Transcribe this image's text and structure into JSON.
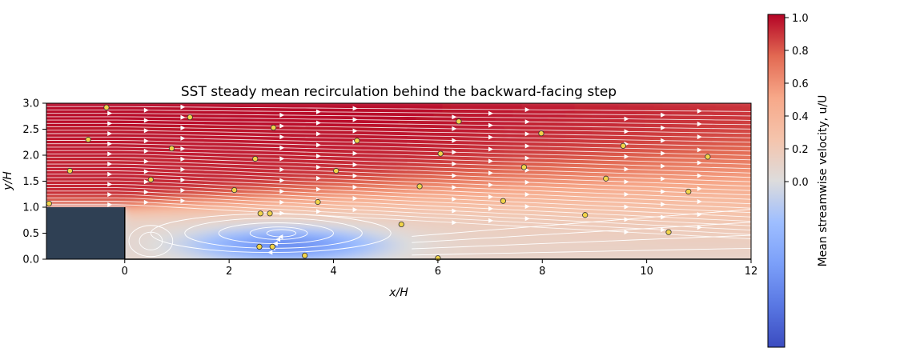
{
  "chart_data": {
    "type": "heatmap",
    "title": "SST steady mean recirculation behind the backward-facing step",
    "xlabel": "x/H",
    "ylabel": "y/H",
    "xlim": [
      -1.5,
      12
    ],
    "ylim": [
      0,
      3
    ],
    "x_ticks": [
      0,
      2,
      4,
      6,
      8,
      10,
      12
    ],
    "y_ticks": [
      0.0,
      0.5,
      1.0,
      1.5,
      2.0,
      2.5,
      3.0
    ],
    "grid": false,
    "colormap": "coolwarm",
    "colorbar": {
      "label": "Mean streamwise velocity, u/U",
      "range": [
        -1.0,
        1.0
      ],
      "ticks": [
        0.0,
        0.2,
        0.4,
        0.6,
        0.8,
        1.0
      ],
      "low_color": "#3b4cc0",
      "mid_color": "#dddddd",
      "high_color": "#b40426"
    },
    "step": {
      "x_range": [
        -1.5,
        0
      ],
      "height": 1.0,
      "color": "#2f4054"
    },
    "flow": {
      "free_stream_velocity": 1.0,
      "recirculation_vortex_center": [
        2.6,
        0.55
      ],
      "reattachment_length": 6.0,
      "secondary_corner_vortex": [
        0.5,
        0.35
      ]
    },
    "streamlines": {
      "color": "#ffffff",
      "arrow_color": "#ffffff"
    },
    "probe_points": {
      "marker_color": "#f2d44a",
      "edge_color": "#333333",
      "points": [
        [
          -1.45,
          1.07
        ],
        [
          -0.35,
          2.92
        ],
        [
          -0.7,
          2.3
        ],
        [
          -1.05,
          1.7
        ],
        [
          0.5,
          1.53
        ],
        [
          0.9,
          2.13
        ],
        [
          1.25,
          2.73
        ],
        [
          2.1,
          1.33
        ],
        [
          2.5,
          1.93
        ],
        [
          2.85,
          2.53
        ],
        [
          2.6,
          0.88
        ],
        [
          2.78,
          0.88
        ],
        [
          2.58,
          0.24
        ],
        [
          2.83,
          0.24
        ],
        [
          3.45,
          0.07
        ],
        [
          3.7,
          1.1
        ],
        [
          4.05,
          1.7
        ],
        [
          4.45,
          2.28
        ],
        [
          5.3,
          0.67
        ],
        [
          5.65,
          1.4
        ],
        [
          6.05,
          2.03
        ],
        [
          6.4,
          2.65
        ],
        [
          6.0,
          0.02
        ],
        [
          7.25,
          1.12
        ],
        [
          7.65,
          1.77
        ],
        [
          7.98,
          2.42
        ],
        [
          8.82,
          0.85
        ],
        [
          9.22,
          1.55
        ],
        [
          9.55,
          2.18
        ],
        [
          10.42,
          0.52
        ],
        [
          10.8,
          1.3
        ],
        [
          11.17,
          1.97
        ]
      ]
    }
  }
}
